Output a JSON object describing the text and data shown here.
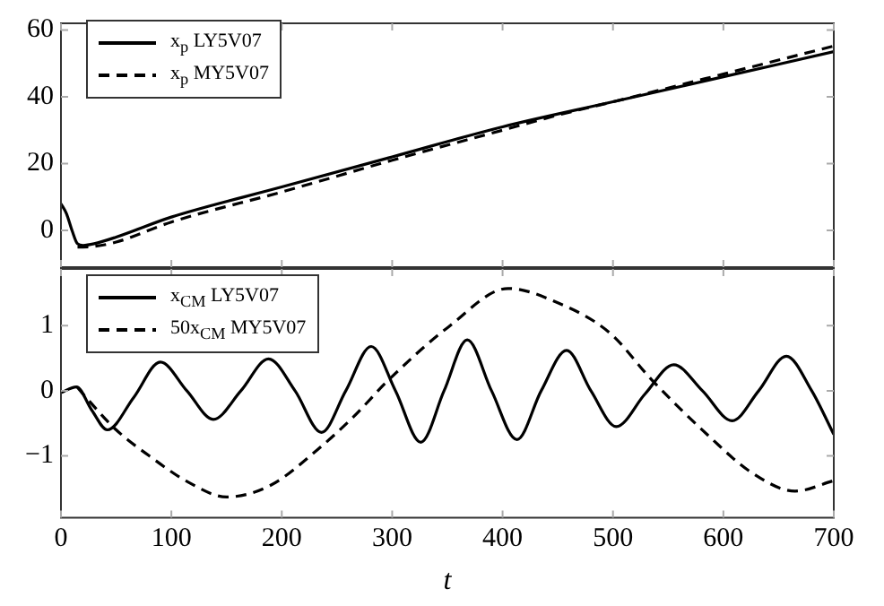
{
  "chart_data": [
    {
      "type": "line",
      "xlim": [
        0,
        700
      ],
      "xticks": [
        0,
        100,
        200,
        300,
        400,
        500,
        600,
        700
      ],
      "ylim": [
        -11,
        62
      ],
      "yticks": [
        0,
        20,
        40,
        60
      ],
      "tick_labels": "y",
      "grid": false,
      "legend": "top left",
      "marker": "none",
      "series": [
        {
          "name": "x$_{p}$ LY5V07",
          "color": "#000000",
          "line_style": "solid",
          "x": [
            0,
            5,
            10,
            15,
            20,
            30,
            50,
            100,
            200,
            300,
            400,
            500,
            600,
            700
          ],
          "values": [
            8,
            5,
            0,
            -4,
            -4.5,
            -4,
            -2,
            4,
            13,
            22,
            31,
            38.5,
            46,
            53.5
          ]
        },
        {
          "name": "x$_{p}$ MY5V07",
          "color": "#000000",
          "line_style": "dashed",
          "x": [
            15,
            20,
            30,
            50,
            100,
            200,
            300,
            400,
            450,
            500,
            600,
            700
          ],
          "values": [
            -5,
            -5,
            -4.8,
            -3.5,
            2.5,
            11.5,
            21,
            30,
            34.5,
            38.5,
            46.8,
            55.2
          ]
        }
      ]
    },
    {
      "type": "line",
      "xlabel": "t",
      "xlim": [
        0,
        700
      ],
      "xticks": [
        0,
        100,
        200,
        300,
        400,
        500,
        600,
        700
      ],
      "ylim": [
        -1.95,
        1.87
      ],
      "yticks": [
        -1,
        0,
        1
      ],
      "grid": false,
      "legend": "top left",
      "marker": "none",
      "series": [
        {
          "name": "x$_{CM}$ LY5V07",
          "color": "#000000",
          "line_style": "solid",
          "x": [
            0,
            14,
            28,
            42,
            66,
            90,
            114,
            138,
            163,
            188,
            212,
            236,
            258,
            281,
            303,
            326,
            347,
            368,
            390,
            413,
            435,
            458,
            480,
            503,
            529,
            555,
            581,
            608,
            632,
            657,
            680,
            700
          ],
          "values": [
            -0.03,
            0.06,
            -0.3,
            -0.6,
            -0.1,
            0.44,
            0,
            -0.44,
            0,
            0.49,
            0,
            -0.64,
            0,
            0.68,
            0,
            -0.79,
            0,
            0.78,
            0,
            -0.75,
            0,
            0.62,
            0,
            -0.55,
            -0.05,
            0.4,
            0,
            -0.46,
            0,
            0.53,
            0,
            -0.67
          ]
        },
        {
          "name": "50x$_{CM}$ MY5V07",
          "color": "#000000",
          "line_style": "dashed",
          "x": [
            15,
            20,
            50,
            80,
            115,
            150,
            190,
            232,
            265,
            297,
            351,
            405,
            450,
            497,
            535,
            589,
            625,
            665,
            700
          ],
          "values": [
            0.05,
            -0.05,
            -0.6,
            -1,
            -1.4,
            -1.63,
            -1.45,
            -0.91,
            -0.4,
            0.17,
            0.98,
            1.57,
            1.35,
            0.89,
            0.17,
            -0.73,
            -1.25,
            -1.54,
            -1.38
          ]
        }
      ]
    }
  ]
}
